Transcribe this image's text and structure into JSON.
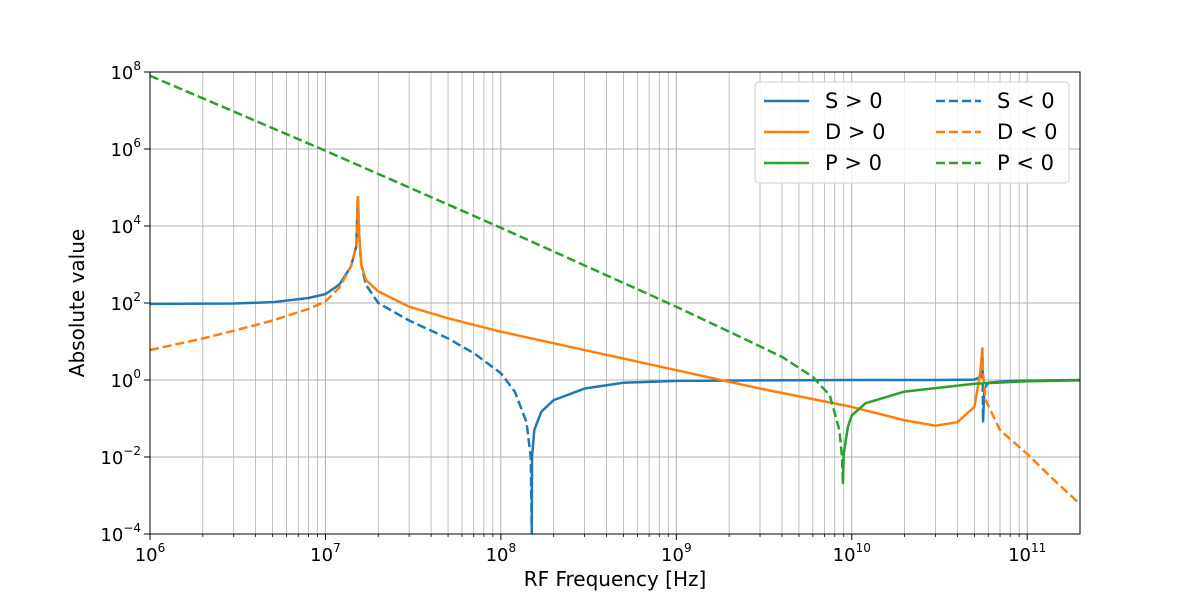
{
  "chart_data": {
    "type": "line",
    "xlabel": "RF Frequency [Hz]",
    "ylabel": "Absolute value",
    "x_scale": "log",
    "y_scale": "log",
    "xlim": [
      1000000,
      200000000000
    ],
    "ylim": [
      0.0001,
      100000000
    ],
    "grid": true,
    "legend_position": "top-right",
    "legend_columns": 2,
    "x_ticks": [
      {
        "base": "10",
        "exp": "6",
        "value": 1000000
      },
      {
        "base": "10",
        "exp": "7",
        "value": 10000000
      },
      {
        "base": "10",
        "exp": "8",
        "value": 100000000
      },
      {
        "base": "10",
        "exp": "9",
        "value": 1000000000
      },
      {
        "base": "10",
        "exp": "10",
        "value": 10000000000
      },
      {
        "base": "10",
        "exp": "11",
        "value": 100000000000
      }
    ],
    "y_ticks": [
      {
        "base": "10",
        "exp": "−4",
        "value": 0.0001
      },
      {
        "base": "10",
        "exp": "−2",
        "value": 0.01
      },
      {
        "base": "10",
        "exp": "0",
        "value": 1
      },
      {
        "base": "10",
        "exp": "2",
        "value": 100
      },
      {
        "base": "10",
        "exp": "4",
        "value": 10000
      },
      {
        "base": "10",
        "exp": "6",
        "value": 1000000
      },
      {
        "base": "10",
        "exp": "8",
        "value": 100000000
      }
    ],
    "legend": [
      {
        "label": "S > 0",
        "color": "#1f77b4",
        "dash": false
      },
      {
        "label": "S < 0",
        "color": "#1f77b4",
        "dash": true
      },
      {
        "label": "D > 0",
        "color": "#ff7f0e",
        "dash": false
      },
      {
        "label": "D < 0",
        "color": "#ff7f0e",
        "dash": true
      },
      {
        "label": "P > 0",
        "color": "#2ca02c",
        "dash": false
      },
      {
        "label": "P < 0",
        "color": "#2ca02c",
        "dash": true
      }
    ],
    "series": [
      {
        "name": "S > 0",
        "color": "#1f77b4",
        "dash": false,
        "segments": [
          [
            [
              1000000,
              95
            ],
            [
              3000000,
              97
            ],
            [
              5000000,
              105
            ],
            [
              8000000,
              135
            ],
            [
              10000000,
              170
            ],
            [
              12000000,
              300
            ],
            [
              14000000,
              900
            ],
            [
              15000000,
              3000
            ],
            [
              15300000,
              60000
            ]
          ],
          [
            [
              150000000,
              0.0001
            ],
            [
              150500000,
              0.01
            ],
            [
              155000000,
              0.05
            ],
            [
              170000000,
              0.15
            ],
            [
              200000000,
              0.3
            ],
            [
              300000000,
              0.6
            ],
            [
              500000000,
              0.85
            ],
            [
              1000000000,
              0.95
            ],
            [
              3000000000,
              0.98
            ],
            [
              10000000000,
              1
            ],
            [
              30000000000,
              1
            ],
            [
              50000000000,
              1.02
            ],
            [
              54000000000,
              1.2
            ],
            [
              55500000000,
              4
            ]
          ],
          [
            [
              56000000000,
              0.08
            ],
            [
              57000000000,
              0.6
            ],
            [
              60000000000,
              0.85
            ],
            [
              80000000000,
              0.95
            ],
            [
              200000000000,
              1
            ]
          ]
        ]
      },
      {
        "name": "S < 0",
        "color": "#1f77b4",
        "dash": true,
        "segments": [
          [
            [
              15300000,
              60000
            ],
            [
              15600000,
              5000
            ],
            [
              16000000,
              1000
            ],
            [
              17000000,
              300
            ],
            [
              20000000,
              100
            ],
            [
              30000000,
              35
            ],
            [
              50000000,
              12
            ],
            [
              70000000,
              5
            ],
            [
              100000000,
              1.5
            ],
            [
              120000000,
              0.5
            ],
            [
              140000000,
              0.08
            ],
            [
              148000000,
              0.01
            ],
            [
              150000000,
              0.0001
            ]
          ],
          [
            [
              55500000000,
              4
            ],
            [
              55800000000,
              1
            ],
            [
              56000000000,
              0.08
            ]
          ]
        ]
      },
      {
        "name": "D > 0",
        "color": "#ff7f0e",
        "dash": false,
        "segments": [
          [
            [
              15300000,
              60000
            ],
            [
              15600000,
              5000
            ],
            [
              16000000,
              1000
            ],
            [
              17000000,
              400
            ],
            [
              20000000,
              200
            ],
            [
              30000000,
              80
            ],
            [
              50000000,
              40
            ],
            [
              100000000,
              18
            ],
            [
              300000000,
              6
            ],
            [
              1000000000,
              1.8
            ],
            [
              3000000000,
              0.6
            ],
            [
              10000000000,
              0.2
            ],
            [
              20000000000,
              0.09
            ],
            [
              30000000000,
              0.065
            ],
            [
              40000000000,
              0.08
            ],
            [
              50000000000,
              0.2
            ],
            [
              54000000000,
              1.5
            ],
            [
              55500000000,
              7
            ]
          ]
        ]
      },
      {
        "name": "D < 0",
        "color": "#ff7f0e",
        "dash": true,
        "segments": [
          [
            [
              1000000,
              6
            ],
            [
              2000000,
              12
            ],
            [
              3000000,
              19
            ],
            [
              5000000,
              35
            ],
            [
              8000000,
              70
            ],
            [
              10000000,
              110
            ],
            [
              12000000,
              250
            ],
            [
              14000000,
              900
            ],
            [
              15000000,
              3000
            ],
            [
              15300000,
              60000
            ]
          ],
          [
            [
              55500000000,
              7
            ],
            [
              56000000000,
              1.5
            ],
            [
              58000000000,
              0.3
            ],
            [
              70000000000,
              0.05
            ],
            [
              100000000000,
              0.012
            ],
            [
              150000000000,
              0.002
            ],
            [
              200000000000,
              0.0006
            ]
          ]
        ]
      },
      {
        "name": "P > 0",
        "color": "#2ca02c",
        "dash": false,
        "segments": [
          [
            [
              8900000000,
              0.002
            ],
            [
              9000000000,
              0.012
            ],
            [
              9500000000,
              0.06
            ],
            [
              10000000000,
              0.12
            ],
            [
              12000000000,
              0.25
            ],
            [
              20000000000,
              0.5
            ],
            [
              50000000000,
              0.8
            ],
            [
              100000000000,
              0.93
            ],
            [
              200000000000,
              0.98
            ]
          ]
        ]
      },
      {
        "name": "P < 0",
        "color": "#2ca02c",
        "dash": true,
        "segments": [
          [
            [
              1000000,
              80000000
            ],
            [
              10000000,
              900000
            ],
            [
              100000000,
              9000
            ],
            [
              1000000000,
              80
            ],
            [
              2000000000,
              18
            ],
            [
              4000000000,
              4
            ],
            [
              6000000000,
              1.2
            ],
            [
              7500000000,
              0.4
            ],
            [
              8500000000,
              0.05
            ],
            [
              8800000000,
              0.01
            ],
            [
              8900000000,
              0.002
            ]
          ]
        ]
      }
    ]
  }
}
